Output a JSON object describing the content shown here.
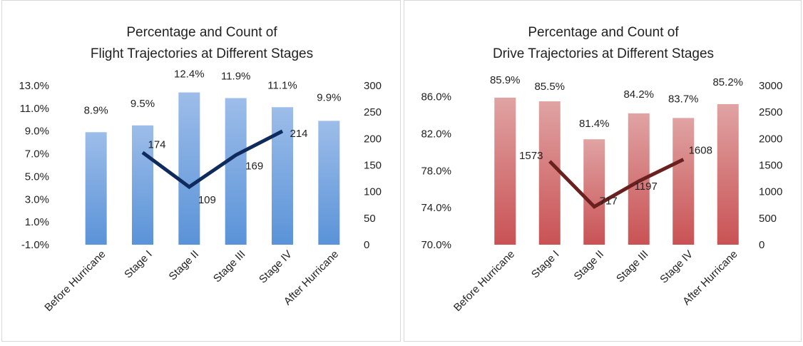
{
  "chart_data": [
    {
      "type": "bar",
      "title_lines": [
        "Percentage and Count of",
        "Flight Trajectories at Different Stages"
      ],
      "categories": [
        "Before Hurricane",
        "Stage I",
        "Stage II",
        "Stage III",
        "Stage IV",
        "After Hurricane"
      ],
      "series": [
        {
          "type": "bar",
          "axis": "left",
          "values": [
            8.9,
            9.5,
            12.4,
            11.9,
            11.1,
            9.9
          ],
          "labels": [
            "8.9%",
            "9.5%",
            "12.4%",
            "11.9%",
            "11.1%",
            "9.9%"
          ]
        },
        {
          "type": "line",
          "axis": "right",
          "values": [
            null,
            174,
            109,
            169,
            214,
            null
          ],
          "labels": [
            "",
            "174",
            "109",
            "169",
            "214",
            ""
          ]
        }
      ],
      "ylim_left": [
        -1,
        13
      ],
      "yticks_left": [
        "13.0%",
        "11.0%",
        "9.0%",
        "7.0%",
        "5.0%",
        "3.0%",
        "1.0%",
        "-1.0%"
      ],
      "ytick_values_left": [
        13,
        11,
        9,
        7,
        5,
        3,
        1,
        -1
      ],
      "ylim_right": [
        0,
        300
      ],
      "yticks_right": [
        "300",
        "250",
        "200",
        "150",
        "100",
        "50",
        "0"
      ],
      "ytick_values_right": [
        300,
        250,
        200,
        150,
        100,
        50,
        0
      ],
      "bar_color_top": "#9dbde9",
      "bar_color_bottom": "#5a93d8",
      "line_color": "#0f2a5c",
      "grid": false,
      "legend": "none"
    },
    {
      "type": "bar",
      "title_lines": [
        "Percentage and Count of",
        "Drive Trajectories at Different Stages"
      ],
      "categories": [
        "Before Hurricane",
        "Stage I",
        "Stage II",
        "Stage III",
        "Stage IV",
        "After Hurricane"
      ],
      "series": [
        {
          "type": "bar",
          "axis": "left",
          "values": [
            85.9,
            85.5,
            81.4,
            84.2,
            83.7,
            85.2
          ],
          "labels": [
            "85.9%",
            "85.5%",
            "81.4%",
            "84.2%",
            "83.7%",
            "85.2%"
          ]
        },
        {
          "type": "line",
          "axis": "right",
          "values": [
            null,
            1573,
            717,
            1197,
            1608,
            null
          ],
          "labels": [
            "",
            "1573",
            "717",
            "1197",
            "1608",
            ""
          ]
        }
      ],
      "ylim_left": [
        70,
        87.2
      ],
      "yticks_left": [
        "86.0%",
        "82.0%",
        "78.0%",
        "74.0%",
        "70.0%"
      ],
      "ytick_values_left": [
        86,
        82,
        78,
        74,
        70
      ],
      "ylim_right": [
        0,
        3000
      ],
      "yticks_right": [
        "3000",
        "2500",
        "2000",
        "1500",
        "1000",
        "500",
        "0"
      ],
      "ytick_values_right": [
        3000,
        2500,
        2000,
        1500,
        1000,
        500,
        0
      ],
      "bar_color_top": "#e0a3a3",
      "bar_color_bottom": "#c95254",
      "line_color": "#6b2020",
      "grid": false,
      "legend": "none"
    }
  ]
}
